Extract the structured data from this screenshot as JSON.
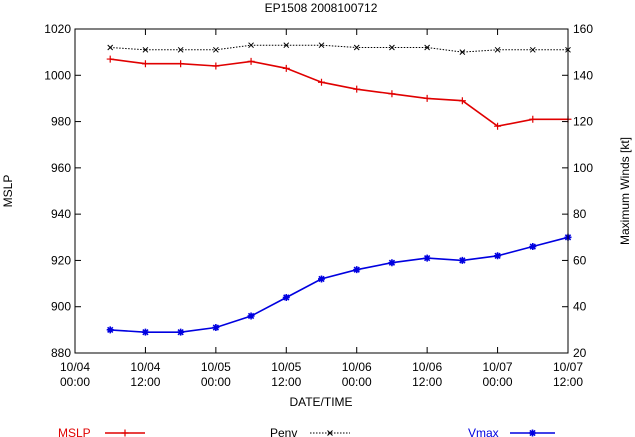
{
  "chart_data": {
    "type": "line",
    "title": "EP1508 2008100712",
    "xlabel": "DATE/TIME",
    "ylabel_left": "MSLP",
    "ylabel_right": "Maximum Winds [kt]",
    "x_range_hours": [
      0,
      84
    ],
    "x_ticks": [
      {
        "hour": 0,
        "line1": "10/04",
        "line2": "00:00"
      },
      {
        "hour": 12,
        "line1": "10/04",
        "line2": "12:00"
      },
      {
        "hour": 24,
        "line1": "10/05",
        "line2": "00:00"
      },
      {
        "hour": 36,
        "line1": "10/05",
        "line2": "12:00"
      },
      {
        "hour": 48,
        "line1": "10/06",
        "line2": "00:00"
      },
      {
        "hour": 60,
        "line1": "10/06",
        "line2": "12:00"
      },
      {
        "hour": 72,
        "line1": "10/07",
        "line2": "00:00"
      },
      {
        "hour": 84,
        "line1": "10/07",
        "line2": "12:00"
      }
    ],
    "y_left_range": [
      880,
      1020
    ],
    "y_left_ticks": [
      "880",
      "900",
      "920",
      "940",
      "960",
      "980",
      "1000",
      "1020"
    ],
    "y_right_range": [
      20,
      160
    ],
    "y_right_ticks": [
      "20",
      "40",
      "60",
      "80",
      "100",
      "120",
      "140",
      "160"
    ],
    "x": [
      6,
      12,
      18,
      24,
      30,
      36,
      42,
      48,
      54,
      60,
      66,
      72,
      78,
      84
    ],
    "series": [
      {
        "name": "MSLP",
        "axis": "left",
        "color": "#e00000",
        "marker": "plus",
        "dash": "solid",
        "values": [
          1007,
          1005,
          1005,
          1004,
          1006,
          1003,
          997,
          994,
          992,
          990,
          989,
          978,
          981,
          981
        ]
      },
      {
        "name": "Penv",
        "axis": "left",
        "color": "#000000",
        "marker": "x",
        "dash": "dotted",
        "values": [
          1012,
          1011,
          1011,
          1011,
          1013,
          1013,
          1013,
          1012,
          1012,
          1012,
          1010,
          1011,
          1011,
          1011
        ]
      },
      {
        "name": "Vmax",
        "axis": "right",
        "color": "#0000e0",
        "marker": "star",
        "dash": "solid",
        "values": [
          30,
          29,
          29,
          31,
          36,
          44,
          52,
          56,
          59,
          61,
          60,
          62,
          66,
          70
        ]
      }
    ]
  }
}
